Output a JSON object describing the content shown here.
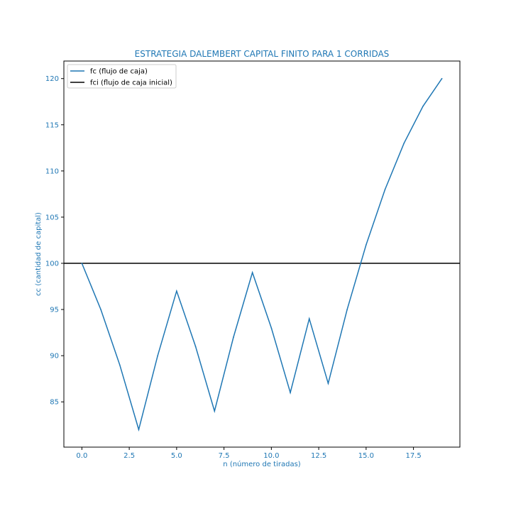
{
  "chart_data": {
    "type": "line",
    "title": "ESTRATEGIA DALEMBERT CAPITAL FINITO PARA 1 CORRIDAS",
    "xlabel": "n (número de tiradas)",
    "ylabel": "cc (cantidad de capital)",
    "xlim": [
      -0.95,
      19.95
    ],
    "ylim": [
      80.1,
      121.9
    ],
    "xticks": [
      {
        "value": 0.0,
        "label": "0.0"
      },
      {
        "value": 2.5,
        "label": "2.5"
      },
      {
        "value": 5.0,
        "label": "5.0"
      },
      {
        "value": 7.5,
        "label": "7.5"
      },
      {
        "value": 10.0,
        "label": "10.0"
      },
      {
        "value": 12.5,
        "label": "12.5"
      },
      {
        "value": 15.0,
        "label": "15.0"
      },
      {
        "value": 17.5,
        "label": "17.5"
      }
    ],
    "yticks": [
      {
        "value": 85,
        "label": "85"
      },
      {
        "value": 90,
        "label": "90"
      },
      {
        "value": 95,
        "label": "95"
      },
      {
        "value": 100,
        "label": "100"
      },
      {
        "value": 105,
        "label": "105"
      },
      {
        "value": 110,
        "label": "110"
      },
      {
        "value": 115,
        "label": "115"
      },
      {
        "value": 120,
        "label": "120"
      }
    ],
    "grid": false,
    "legend_position": "top-left",
    "series": [
      {
        "name": "fc (flujo de caja)",
        "color": "#1f77b4",
        "x": [
          0,
          1,
          2,
          3,
          4,
          5,
          6,
          7,
          8,
          9,
          10,
          11,
          12,
          13,
          14,
          15,
          16,
          17,
          18,
          19
        ],
        "values": [
          100,
          95,
          89,
          82,
          90,
          97,
          91,
          84,
          92,
          99,
          93,
          86,
          94,
          87,
          95,
          102,
          108,
          113,
          117,
          120
        ]
      }
    ],
    "hlines": [
      {
        "name": "fci (flujo de caja inicial)",
        "color": "#000000",
        "y": 100
      }
    ]
  }
}
